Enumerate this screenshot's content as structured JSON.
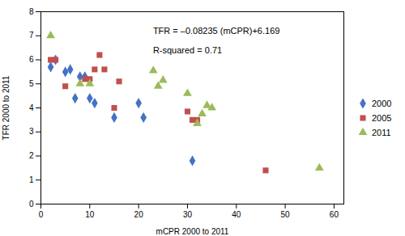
{
  "chart_data": {
    "type": "scatter",
    "xlabel": "mCPR 2000 to 2011",
    "ylabel": "TFR 2000 to 2011",
    "annotations": [
      "TFR = –0.08235 (mCPR)+6.169",
      "R-squared = 0.71"
    ],
    "xlim": [
      0,
      62
    ],
    "ylim": [
      0,
      8
    ],
    "xticks": [
      0,
      10,
      20,
      30,
      40,
      50,
      60
    ],
    "yticks": [
      0,
      1,
      2,
      3,
      4,
      5,
      6,
      7,
      8
    ],
    "grid": false,
    "legend": "right",
    "series": [
      {
        "name": "2000",
        "color": "#4472C4",
        "marker": "diamond",
        "x": [
          2,
          3,
          5,
          6,
          7,
          8,
          9,
          10,
          11,
          15,
          20,
          21,
          31
        ],
        "values": [
          5.7,
          6.0,
          5.5,
          5.6,
          4.4,
          5.3,
          5.3,
          4.4,
          4.2,
          3.6,
          4.2,
          3.6,
          1.8
        ]
      },
      {
        "name": "2005",
        "color": "#C0504D",
        "marker": "square",
        "x": [
          2,
          3,
          5,
          9,
          10,
          11,
          12,
          13,
          15,
          16,
          30,
          31,
          32,
          46
        ],
        "values": [
          6.0,
          6.0,
          4.9,
          5.2,
          5.2,
          5.6,
          6.2,
          5.6,
          4.0,
          5.1,
          3.85,
          3.5,
          3.5,
          1.4
        ]
      },
      {
        "name": "2011",
        "color": "#9BBB59",
        "marker": "triangle",
        "x": [
          2,
          8,
          10,
          23,
          24,
          25,
          30,
          32,
          33,
          34,
          35,
          57
        ],
        "values": [
          7.0,
          5.0,
          5.0,
          5.55,
          4.9,
          5.15,
          4.6,
          3.35,
          3.75,
          4.1,
          4.0,
          1.5
        ]
      }
    ]
  }
}
